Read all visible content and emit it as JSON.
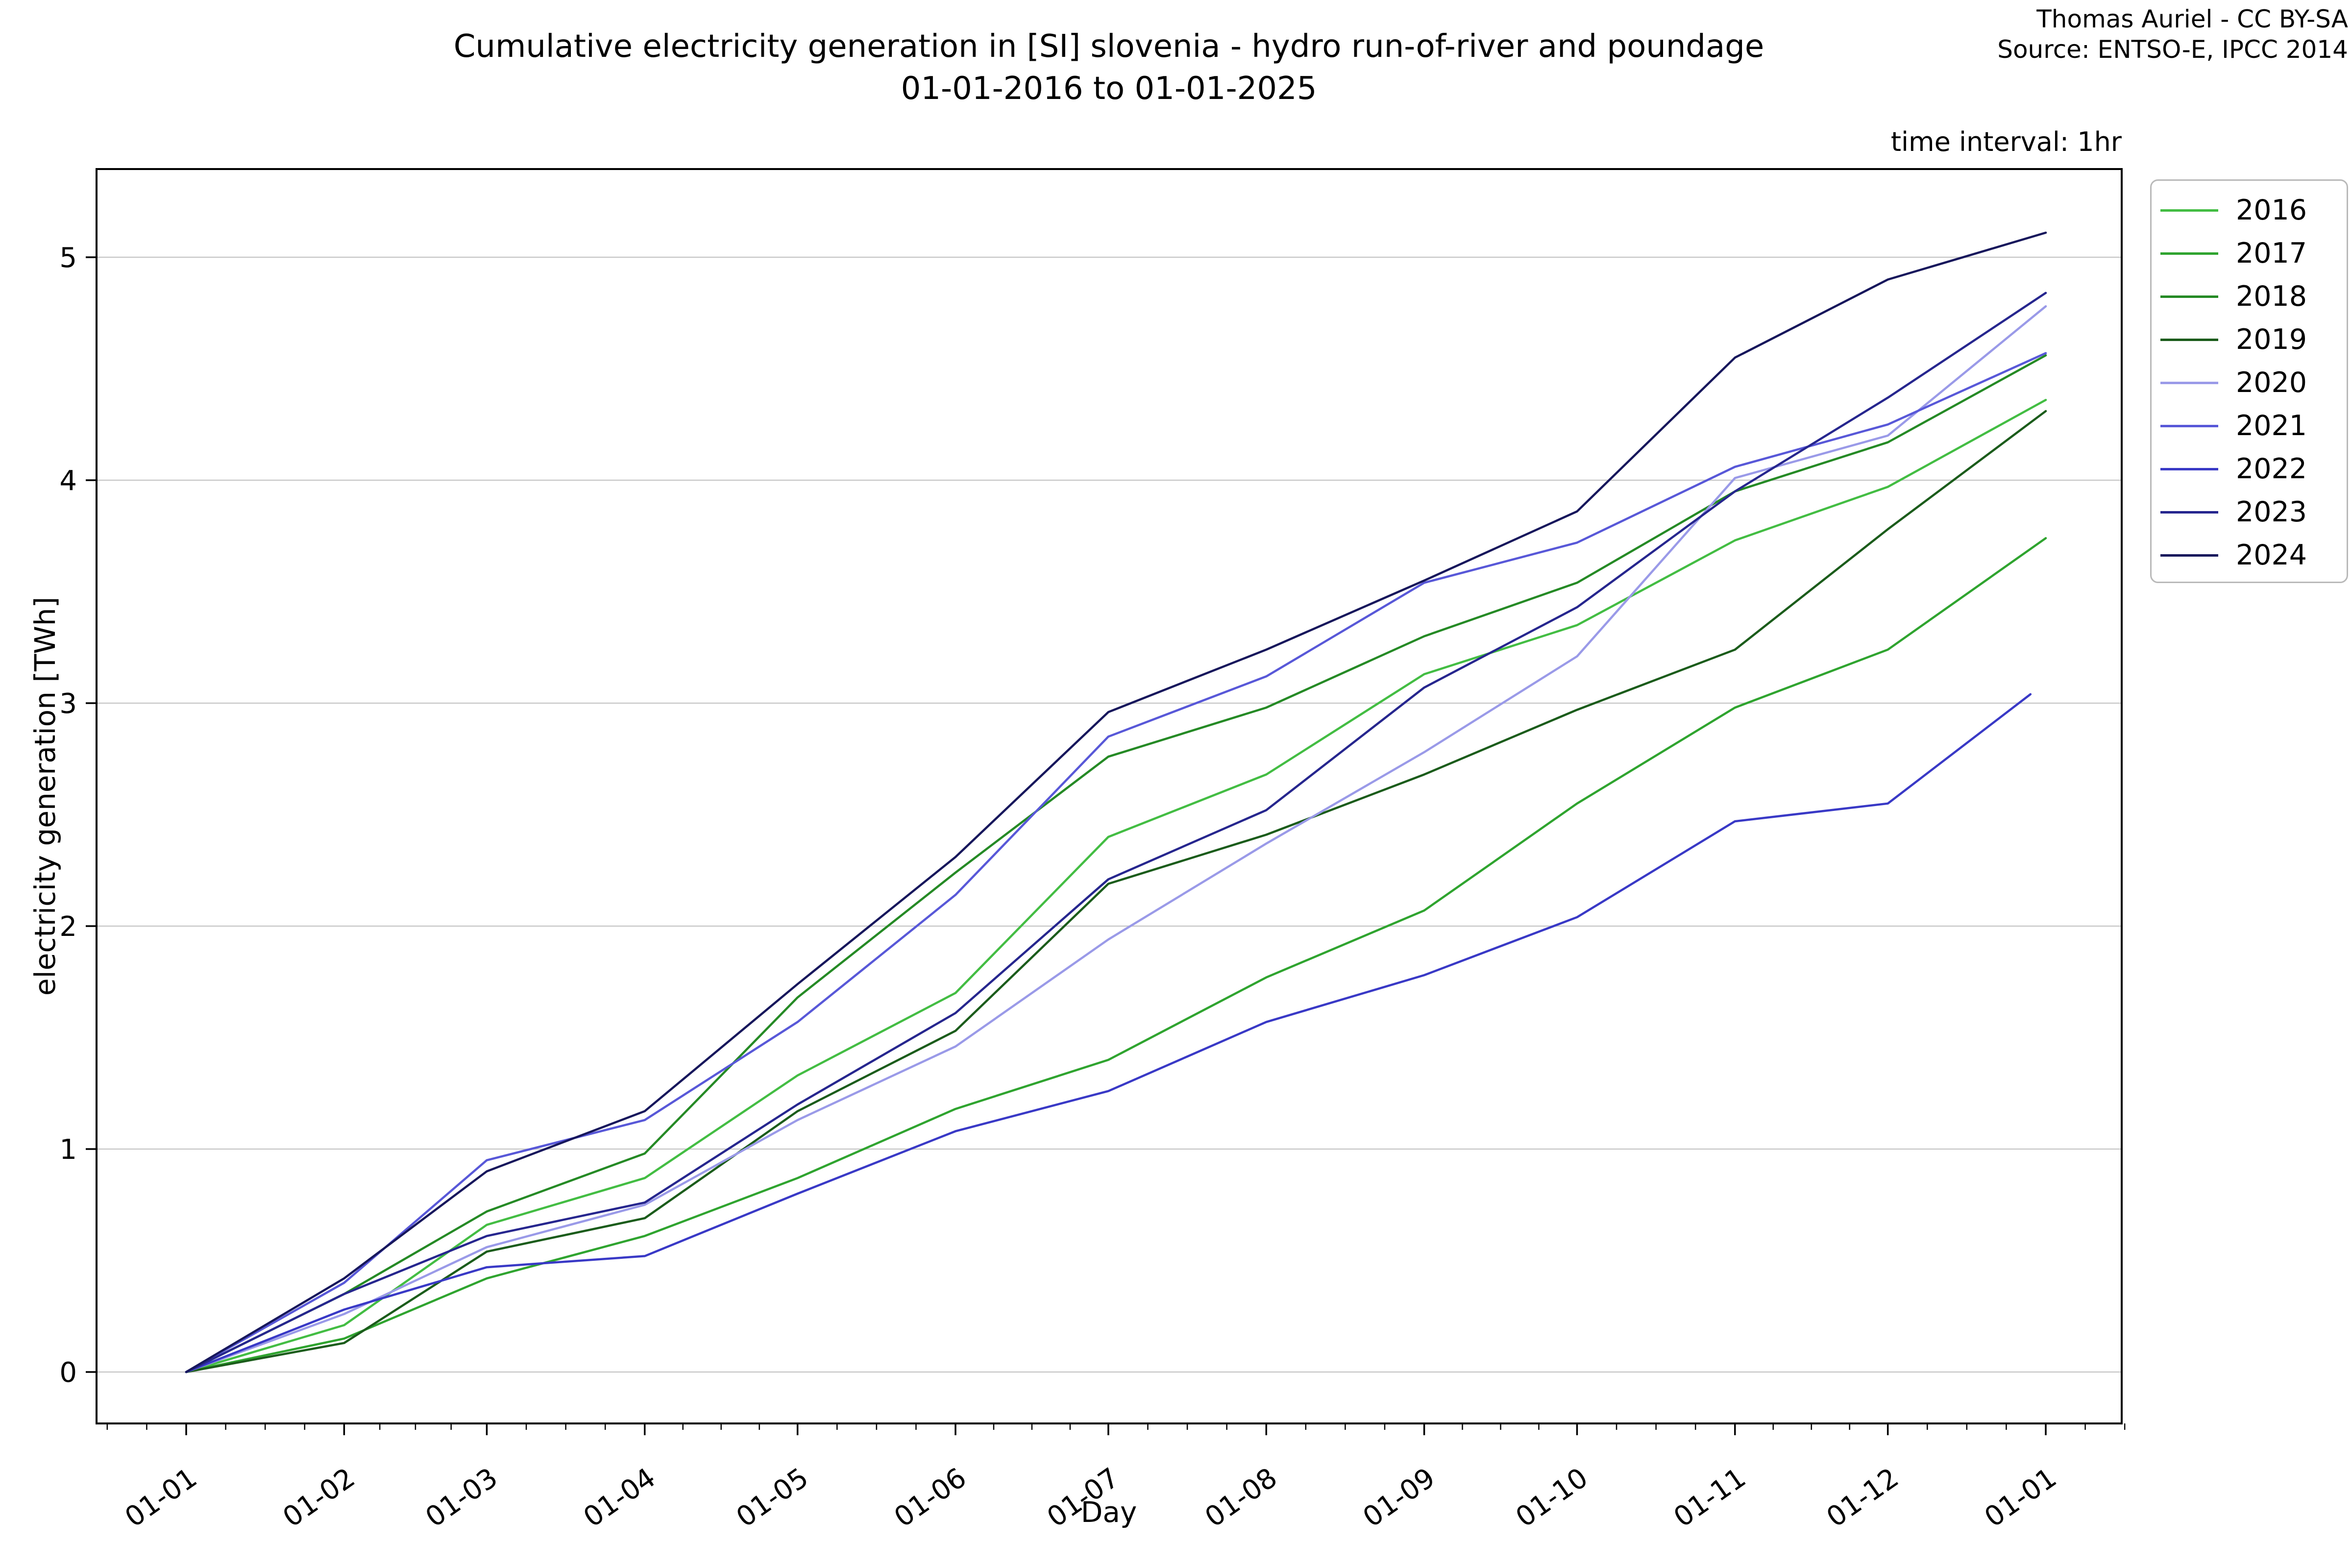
{
  "header": {
    "attribution_line1": "Thomas Auriel - CC BY-SA",
    "attribution_line2": "Source: ENTSO-E, IPCC 2014",
    "plot_note": "time interval: 1hr"
  },
  "chart_data": {
    "type": "line",
    "title": "Cumulative electricity generation in [SI] slovenia - hydro run-of-river and poundage",
    "subtitle": "01-01-2016 to 01-01-2025",
    "xlabel": "Day",
    "ylabel": "electricity generation [TWh]",
    "grid": true,
    "legend_position": "outside-right",
    "yticks": [
      0,
      1,
      2,
      3,
      4,
      5
    ],
    "ylim": [
      -0.26,
      5.37
    ],
    "xlim_days": [
      -18.25,
      383.25
    ],
    "x_tick_labels": [
      "01-01",
      "01-02",
      "01-03",
      "01-04",
      "01-05",
      "01-06",
      "01-07",
      "01-08",
      "01-09",
      "01-10",
      "01-11",
      "01-12",
      "01-01"
    ],
    "x_days": [
      0,
      31,
      59,
      90,
      120,
      151,
      181,
      212,
      243,
      273,
      304,
      334,
      365
    ],
    "series": [
      {
        "name": "2016",
        "color": "#43bd43",
        "values": [
          0,
          0.21,
          0.66,
          0.87,
          1.33,
          1.7,
          2.4,
          2.68,
          3.13,
          3.35,
          3.73,
          3.97,
          4.36
        ]
      },
      {
        "name": "2017",
        "color": "#2fa42f",
        "values": [
          0,
          0.15,
          0.42,
          0.61,
          0.87,
          1.18,
          1.4,
          1.77,
          2.07,
          2.55,
          2.98,
          3.24,
          3.74
        ]
      },
      {
        "name": "2018",
        "color": "#258a25",
        "values": [
          0,
          0.35,
          0.72,
          0.98,
          1.68,
          2.24,
          2.76,
          2.98,
          3.3,
          3.54,
          3.95,
          4.17,
          4.56
        ]
      },
      {
        "name": "2019",
        "color": "#1b5c1b",
        "values": [
          0,
          0.13,
          0.54,
          0.69,
          1.17,
          1.53,
          2.19,
          2.41,
          2.68,
          2.97,
          3.24,
          3.78,
          4.31
        ]
      },
      {
        "name": "2020",
        "color": "#9a9ae8",
        "values": [
          0,
          0.26,
          0.56,
          0.75,
          1.13,
          1.46,
          1.94,
          2.37,
          2.78,
          3.21,
          4.01,
          4.2,
          4.78
        ]
      },
      {
        "name": "2021",
        "color": "#5858d8",
        "values": [
          0,
          0.4,
          0.95,
          1.13,
          1.57,
          2.14,
          2.85,
          3.12,
          3.54,
          3.72,
          4.06,
          4.25,
          4.57
        ]
      },
      {
        "name": "2022",
        "color": "#3939c6",
        "values": [
          0,
          0.28,
          0.47,
          0.52,
          0.8,
          1.08,
          1.26,
          1.57,
          1.78,
          2.04,
          2.47,
          2.55,
          3.04
        ],
        "end_day": 362
      },
      {
        "name": "2023",
        "color": "#26268e",
        "values": [
          0,
          0.35,
          0.61,
          0.76,
          1.2,
          1.61,
          2.21,
          2.52,
          3.07,
          3.43,
          3.95,
          4.37,
          4.84
        ]
      },
      {
        "name": "2024",
        "color": "#17175c",
        "values": [
          0,
          0.42,
          0.9,
          1.17,
          1.74,
          2.31,
          2.96,
          3.24,
          3.55,
          3.86,
          4.55,
          4.9,
          5.11
        ]
      }
    ],
    "axis_colors": {
      "spine": "#000000",
      "gridline": "#c9c9c9",
      "text": "#000000"
    }
  }
}
